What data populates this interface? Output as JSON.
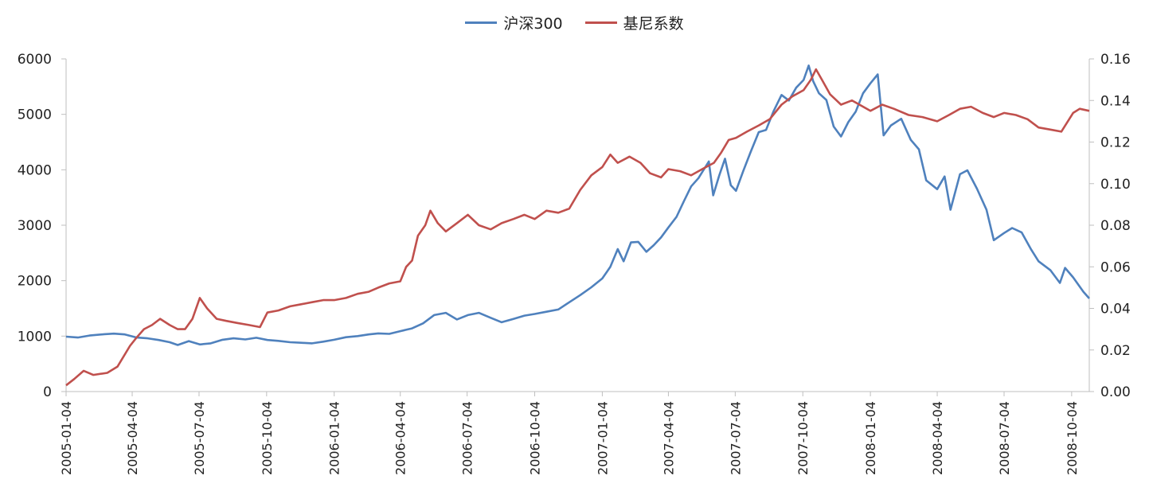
{
  "chart_data": {
    "type": "line",
    "title": "",
    "xlabel": "",
    "ylabel": "",
    "y2label": "",
    "x_ticks": [
      "2005-01-04",
      "2005-04-04",
      "2005-07-04",
      "2005-10-04",
      "2006-01-04",
      "2006-04-04",
      "2006-07-04",
      "2006-10-04",
      "2007-01-04",
      "2007-04-04",
      "2007-07-04",
      "2007-10-04",
      "2008-01-04",
      "2008-04-04",
      "2008-07-04",
      "2008-10-04"
    ],
    "y_ticks": [
      "0",
      "1000",
      "2000",
      "3000",
      "4000",
      "5000",
      "6000"
    ],
    "y2_ticks": [
      "0.00",
      "0.02",
      "0.04",
      "0.06",
      "0.08",
      "0.10",
      "0.12",
      "0.14",
      "0.16"
    ],
    "ylim": [
      0,
      6000
    ],
    "y2lim": [
      0,
      0.16
    ],
    "grid": false,
    "legend_position": "top-center",
    "series": [
      {
        "name": "沪深300",
        "axis": "left",
        "color": "#4f81bd",
        "points": [
          [
            "2005-01-04",
            990
          ],
          [
            "2005-01-20",
            975
          ],
          [
            "2005-02-05",
            1010
          ],
          [
            "2005-02-25",
            1035
          ],
          [
            "2005-03-10",
            1045
          ],
          [
            "2005-03-25",
            1030
          ],
          [
            "2005-04-10",
            975
          ],
          [
            "2005-04-25",
            960
          ],
          [
            "2005-05-10",
            930
          ],
          [
            "2005-05-25",
            890
          ],
          [
            "2005-06-05",
            840
          ],
          [
            "2005-06-20",
            910
          ],
          [
            "2005-07-05",
            850
          ],
          [
            "2005-07-20",
            870
          ],
          [
            "2005-08-05",
            935
          ],
          [
            "2005-08-20",
            960
          ],
          [
            "2005-09-05",
            940
          ],
          [
            "2005-09-20",
            970
          ],
          [
            "2005-10-05",
            930
          ],
          [
            "2005-10-20",
            915
          ],
          [
            "2005-11-05",
            890
          ],
          [
            "2005-11-20",
            880
          ],
          [
            "2005-12-05",
            870
          ],
          [
            "2005-12-20",
            900
          ],
          [
            "2006-01-04",
            935
          ],
          [
            "2006-01-20",
            980
          ],
          [
            "2006-02-05",
            1000
          ],
          [
            "2006-02-20",
            1030
          ],
          [
            "2006-03-05",
            1050
          ],
          [
            "2006-03-20",
            1040
          ],
          [
            "2006-04-04",
            1090
          ],
          [
            "2006-04-20",
            1140
          ],
          [
            "2006-05-05",
            1230
          ],
          [
            "2006-05-20",
            1380
          ],
          [
            "2006-06-05",
            1420
          ],
          [
            "2006-06-20",
            1300
          ],
          [
            "2006-07-05",
            1380
          ],
          [
            "2006-07-20",
            1420
          ],
          [
            "2006-08-05",
            1330
          ],
          [
            "2006-08-20",
            1250
          ],
          [
            "2006-09-05",
            1310
          ],
          [
            "2006-09-20",
            1370
          ],
          [
            "2006-10-04",
            1400
          ],
          [
            "2006-10-20",
            1440
          ],
          [
            "2006-11-05",
            1480
          ],
          [
            "2006-11-20",
            1610
          ],
          [
            "2006-12-05",
            1740
          ],
          [
            "2006-12-20",
            1880
          ],
          [
            "2007-01-04",
            2040
          ],
          [
            "2007-01-15",
            2250
          ],
          [
            "2007-01-25",
            2570
          ],
          [
            "2007-02-02",
            2350
          ],
          [
            "2007-02-12",
            2690
          ],
          [
            "2007-02-22",
            2700
          ],
          [
            "2007-03-05",
            2520
          ],
          [
            "2007-03-15",
            2640
          ],
          [
            "2007-03-25",
            2780
          ],
          [
            "2007-04-04",
            2960
          ],
          [
            "2007-04-15",
            3150
          ],
          [
            "2007-04-25",
            3430
          ],
          [
            "2007-05-05",
            3700
          ],
          [
            "2007-05-15",
            3850
          ],
          [
            "2007-05-29",
            4150
          ],
          [
            "2007-06-04",
            3540
          ],
          [
            "2007-06-12",
            3890
          ],
          [
            "2007-06-20",
            4200
          ],
          [
            "2007-06-28",
            3720
          ],
          [
            "2007-07-05",
            3620
          ],
          [
            "2007-07-15",
            3980
          ],
          [
            "2007-07-25",
            4320
          ],
          [
            "2007-08-05",
            4680
          ],
          [
            "2007-08-15",
            4720
          ],
          [
            "2007-08-25",
            5050
          ],
          [
            "2007-09-05",
            5350
          ],
          [
            "2007-09-15",
            5250
          ],
          [
            "2007-09-25",
            5480
          ],
          [
            "2007-10-05",
            5620
          ],
          [
            "2007-10-12",
            5880
          ],
          [
            "2007-10-18",
            5600
          ],
          [
            "2007-10-26",
            5380
          ],
          [
            "2007-11-05",
            5260
          ],
          [
            "2007-11-15",
            4780
          ],
          [
            "2007-11-25",
            4600
          ],
          [
            "2007-12-05",
            4860
          ],
          [
            "2007-12-15",
            5050
          ],
          [
            "2007-12-25",
            5380
          ],
          [
            "2008-01-04",
            5560
          ],
          [
            "2008-01-14",
            5720
          ],
          [
            "2008-01-22",
            4620
          ],
          [
            "2008-02-01",
            4800
          ],
          [
            "2008-02-15",
            4920
          ],
          [
            "2008-02-28",
            4540
          ],
          [
            "2008-03-10",
            4370
          ],
          [
            "2008-03-20",
            3810
          ],
          [
            "2008-04-04",
            3650
          ],
          [
            "2008-04-14",
            3880
          ],
          [
            "2008-04-22",
            3280
          ],
          [
            "2008-05-05",
            3920
          ],
          [
            "2008-05-15",
            3990
          ],
          [
            "2008-05-28",
            3660
          ],
          [
            "2008-06-10",
            3280
          ],
          [
            "2008-06-20",
            2730
          ],
          [
            "2008-07-04",
            2860
          ],
          [
            "2008-07-15",
            2950
          ],
          [
            "2008-07-28",
            2870
          ],
          [
            "2008-08-10",
            2560
          ],
          [
            "2008-08-20",
            2350
          ],
          [
            "2008-09-05",
            2190
          ],
          [
            "2008-09-18",
            1960
          ],
          [
            "2008-09-25",
            2230
          ],
          [
            "2008-10-06",
            2060
          ],
          [
            "2008-10-20",
            1800
          ],
          [
            "2008-10-28",
            1680
          ]
        ]
      },
      {
        "name": "基尼系数",
        "axis": "right",
        "color": "#c0504d",
        "points": [
          [
            "2005-01-04",
            0.003
          ],
          [
            "2005-01-15",
            0.006
          ],
          [
            "2005-01-28",
            0.01
          ],
          [
            "2005-02-10",
            0.008
          ],
          [
            "2005-03-01",
            0.009
          ],
          [
            "2005-03-15",
            0.012
          ],
          [
            "2005-04-01",
            0.022
          ],
          [
            "2005-04-10",
            0.026
          ],
          [
            "2005-04-20",
            0.03
          ],
          [
            "2005-05-01",
            0.032
          ],
          [
            "2005-05-12",
            0.035
          ],
          [
            "2005-05-25",
            0.032
          ],
          [
            "2005-06-05",
            0.03
          ],
          [
            "2005-06-15",
            0.03
          ],
          [
            "2005-06-25",
            0.035
          ],
          [
            "2005-07-05",
            0.045
          ],
          [
            "2005-07-15",
            0.04
          ],
          [
            "2005-07-28",
            0.035
          ],
          [
            "2005-08-10",
            0.034
          ],
          [
            "2005-08-25",
            0.033
          ],
          [
            "2005-09-10",
            0.032
          ],
          [
            "2005-09-25",
            0.031
          ],
          [
            "2005-10-05",
            0.038
          ],
          [
            "2005-10-20",
            0.039
          ],
          [
            "2005-11-05",
            0.041
          ],
          [
            "2005-11-20",
            0.042
          ],
          [
            "2005-12-05",
            0.043
          ],
          [
            "2005-12-20",
            0.044
          ],
          [
            "2006-01-04",
            0.044
          ],
          [
            "2006-01-20",
            0.045
          ],
          [
            "2006-02-05",
            0.047
          ],
          [
            "2006-02-20",
            0.048
          ],
          [
            "2006-03-05",
            0.05
          ],
          [
            "2006-03-20",
            0.052
          ],
          [
            "2006-04-04",
            0.053
          ],
          [
            "2006-04-12",
            0.06
          ],
          [
            "2006-04-20",
            0.063
          ],
          [
            "2006-04-28",
            0.075
          ],
          [
            "2006-05-08",
            0.08
          ],
          [
            "2006-05-15",
            0.087
          ],
          [
            "2006-05-25",
            0.081
          ],
          [
            "2006-06-05",
            0.077
          ],
          [
            "2006-06-20",
            0.081
          ],
          [
            "2006-07-05",
            0.085
          ],
          [
            "2006-07-20",
            0.08
          ],
          [
            "2006-08-05",
            0.078
          ],
          [
            "2006-08-20",
            0.081
          ],
          [
            "2006-09-05",
            0.083
          ],
          [
            "2006-09-20",
            0.085
          ],
          [
            "2006-10-04",
            0.083
          ],
          [
            "2006-10-20",
            0.087
          ],
          [
            "2006-11-05",
            0.086
          ],
          [
            "2006-11-20",
            0.088
          ],
          [
            "2006-12-05",
            0.097
          ],
          [
            "2006-12-20",
            0.104
          ],
          [
            "2007-01-04",
            0.108
          ],
          [
            "2007-01-15",
            0.114
          ],
          [
            "2007-01-25",
            0.11
          ],
          [
            "2007-02-10",
            0.113
          ],
          [
            "2007-02-25",
            0.11
          ],
          [
            "2007-03-10",
            0.105
          ],
          [
            "2007-03-25",
            0.103
          ],
          [
            "2007-04-04",
            0.107
          ],
          [
            "2007-04-20",
            0.106
          ],
          [
            "2007-05-05",
            0.104
          ],
          [
            "2007-05-20",
            0.107
          ],
          [
            "2007-06-05",
            0.11
          ],
          [
            "2007-06-15",
            0.115
          ],
          [
            "2007-06-25",
            0.121
          ],
          [
            "2007-07-05",
            0.122
          ],
          [
            "2007-07-20",
            0.125
          ],
          [
            "2007-08-05",
            0.128
          ],
          [
            "2007-08-20",
            0.131
          ],
          [
            "2007-09-05",
            0.138
          ],
          [
            "2007-09-20",
            0.142
          ],
          [
            "2007-10-05",
            0.145
          ],
          [
            "2007-10-15",
            0.15
          ],
          [
            "2007-10-22",
            0.155
          ],
          [
            "2007-10-30",
            0.15
          ],
          [
            "2007-11-10",
            0.143
          ],
          [
            "2007-11-25",
            0.138
          ],
          [
            "2007-12-10",
            0.14
          ],
          [
            "2008-01-04",
            0.135
          ],
          [
            "2008-01-20",
            0.138
          ],
          [
            "2008-02-05",
            0.136
          ],
          [
            "2008-02-25",
            0.133
          ],
          [
            "2008-03-15",
            0.132
          ],
          [
            "2008-04-04",
            0.13
          ],
          [
            "2008-04-20",
            0.133
          ],
          [
            "2008-05-05",
            0.136
          ],
          [
            "2008-05-20",
            0.137
          ],
          [
            "2008-06-05",
            0.134
          ],
          [
            "2008-06-20",
            0.132
          ],
          [
            "2008-07-04",
            0.134
          ],
          [
            "2008-07-20",
            0.133
          ],
          [
            "2008-08-05",
            0.131
          ],
          [
            "2008-08-20",
            0.127
          ],
          [
            "2008-09-05",
            0.126
          ],
          [
            "2008-09-20",
            0.125
          ],
          [
            "2008-10-06",
            0.134
          ],
          [
            "2008-10-15",
            0.136
          ],
          [
            "2008-10-28",
            0.135
          ]
        ]
      }
    ]
  }
}
